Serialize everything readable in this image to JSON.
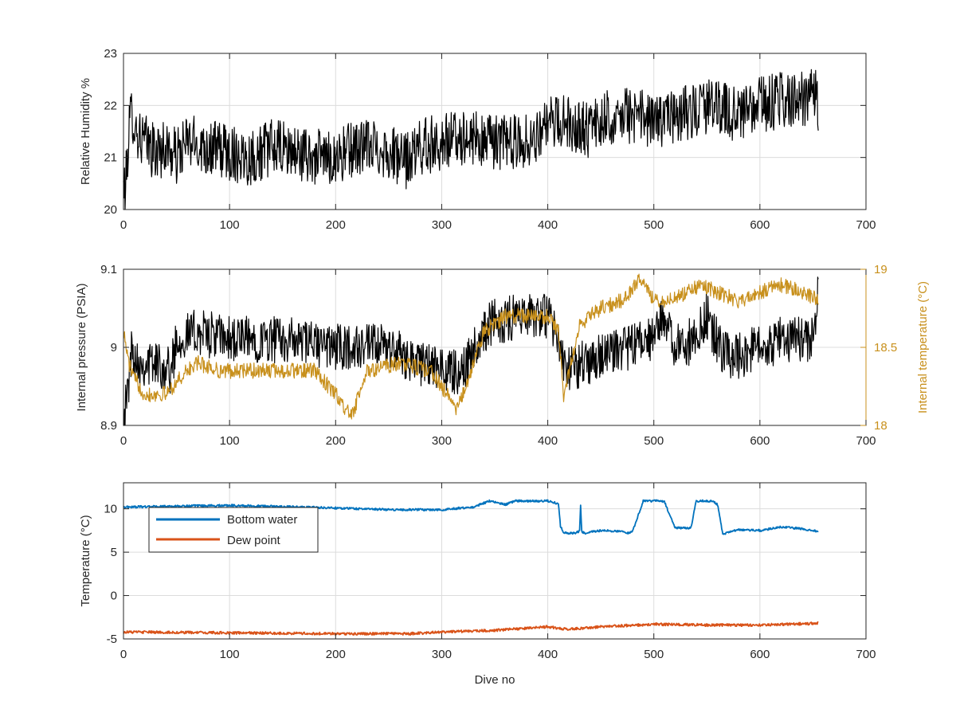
{
  "chart_data": [
    {
      "type": "line",
      "title": "",
      "xlabel": "",
      "ylabel": "Relative Humidity %",
      "xlim": [
        0,
        700
      ],
      "ylim": [
        20,
        23
      ],
      "xticks": [
        0,
        100,
        200,
        300,
        400,
        500,
        600,
        700
      ],
      "yticks": [
        20,
        21,
        22,
        23
      ],
      "grid": true,
      "series": [
        {
          "color": "#000000",
          "x": [
            0,
            2,
            5,
            8,
            12,
            20,
            30,
            40,
            50,
            60,
            80,
            100,
            120,
            140,
            160,
            180,
            200,
            220,
            240,
            260,
            265,
            280,
            300,
            320,
            340,
            360,
            380,
            400,
            420,
            440,
            460,
            480,
            500,
            520,
            540,
            560,
            580,
            600,
            620,
            640,
            650,
            655
          ],
          "y": [
            20.4,
            20.4,
            21.5,
            21.9,
            21.5,
            21.3,
            21.1,
            21.2,
            21.0,
            21.3,
            21.2,
            21.1,
            21.0,
            21.2,
            21.1,
            21.0,
            21.0,
            21.2,
            21.2,
            21.0,
            20.9,
            21.2,
            21.3,
            21.4,
            21.3,
            21.3,
            21.3,
            21.6,
            21.7,
            21.5,
            21.8,
            21.8,
            21.7,
            21.8,
            21.9,
            22.0,
            21.8,
            22.0,
            22.1,
            22.1,
            22.3,
            22.0
          ],
          "noise_amplitude": 0.55
        }
      ]
    },
    {
      "type": "line",
      "title": "",
      "xlabel": "",
      "ylabel": "Internal pressure (PSIA)",
      "y2label": "Internal temperature (°C)",
      "xlim": [
        0,
        700
      ],
      "ylim": [
        8.9,
        9.1
      ],
      "y2lim": [
        18,
        19
      ],
      "xticks": [
        0,
        100,
        200,
        300,
        400,
        500,
        600,
        700
      ],
      "yticks": [
        8.9,
        9,
        9.1
      ],
      "y2ticks": [
        18,
        18.5,
        19
      ],
      "grid": true,
      "series": [
        {
          "axis": "left",
          "color": "#000000",
          "x": [
            0,
            3,
            8,
            15,
            30,
            45,
            50,
            70,
            100,
            150,
            200,
            250,
            280,
            300,
            320,
            330,
            345,
            370,
            400,
            405,
            410,
            415,
            420,
            450,
            480,
            500,
            510,
            520,
            530,
            550,
            565,
            580,
            600,
            620,
            650,
            655
          ],
          "y": [
            8.91,
            8.93,
            9.0,
            8.98,
            8.98,
            8.97,
            9.01,
            9.02,
            9.01,
            9.01,
            9.0,
            9.0,
            8.98,
            8.97,
            8.97,
            9.0,
            9.03,
            9.04,
            9.04,
            9.03,
            9.02,
            8.97,
            8.97,
            8.99,
            9.0,
            9.01,
            9.04,
            9.0,
            9.0,
            9.04,
            8.99,
            8.99,
            9.0,
            9.01,
            9.01,
            9.08
          ],
          "noise_amplitude": 0.03
        },
        {
          "axis": "right",
          "color": "#C8901C",
          "x": [
            0,
            5,
            10,
            20,
            40,
            60,
            70,
            90,
            120,
            150,
            180,
            200,
            215,
            230,
            260,
            290,
            300,
            315,
            325,
            340,
            360,
            380,
            400,
            410,
            415,
            430,
            450,
            470,
            490,
            500,
            510,
            530,
            545,
            560,
            580,
            600,
            620,
            640,
            655
          ],
          "y": [
            18.6,
            18.4,
            18.3,
            18.2,
            18.2,
            18.35,
            18.4,
            18.35,
            18.35,
            18.35,
            18.35,
            18.2,
            18.05,
            18.35,
            18.4,
            18.35,
            18.25,
            18.1,
            18.3,
            18.6,
            18.7,
            18.7,
            18.7,
            18.6,
            18.2,
            18.65,
            18.75,
            18.8,
            18.95,
            18.8,
            18.8,
            18.85,
            18.9,
            18.85,
            18.8,
            18.85,
            18.9,
            18.85,
            18.8
          ],
          "noise_amplitude": 0.05
        }
      ]
    },
    {
      "type": "line",
      "title": "",
      "xlabel": "Dive no",
      "ylabel": "Temperature (°C)",
      "xlim": [
        0,
        700
      ],
      "ylim": [
        -5,
        13
      ],
      "xticks": [
        0,
        100,
        200,
        300,
        400,
        500,
        600,
        700
      ],
      "yticks": [
        -5,
        0,
        5,
        10
      ],
      "grid": true,
      "legend": {
        "position": "top-left",
        "entries": [
          "Bottom water",
          "Dew point"
        ]
      },
      "series": [
        {
          "name": "Bottom water",
          "color": "#0072BD",
          "x": [
            0,
            100,
            200,
            250,
            300,
            330,
            345,
            360,
            370,
            400,
            410,
            412,
            415,
            425,
            430,
            431,
            432,
            435,
            450,
            470,
            475,
            480,
            490,
            505,
            510,
            520,
            530,
            535,
            540,
            555,
            560,
            565,
            580,
            600,
            620,
            640,
            655
          ],
          "y": [
            10.2,
            10.4,
            10.1,
            9.9,
            9.9,
            10.2,
            10.9,
            10.5,
            10.9,
            10.9,
            10.6,
            8.0,
            7.2,
            7.2,
            7.4,
            10.5,
            7.4,
            7.2,
            7.5,
            7.4,
            7.2,
            7.4,
            10.9,
            10.9,
            10.8,
            7.8,
            7.8,
            7.8,
            10.9,
            10.9,
            10.5,
            7.1,
            7.6,
            7.5,
            7.9,
            7.7,
            7.4
          ],
          "noise_amplitude": 0.12
        },
        {
          "name": "Dew point",
          "color": "#D95319",
          "x": [
            0,
            100,
            200,
            270,
            300,
            350,
            400,
            420,
            450,
            500,
            550,
            600,
            655
          ],
          "y": [
            -4.2,
            -4.3,
            -4.4,
            -4.4,
            -4.2,
            -4.0,
            -3.6,
            -3.9,
            -3.6,
            -3.3,
            -3.4,
            -3.4,
            -3.2
          ],
          "noise_amplitude": 0.15
        }
      ]
    }
  ]
}
